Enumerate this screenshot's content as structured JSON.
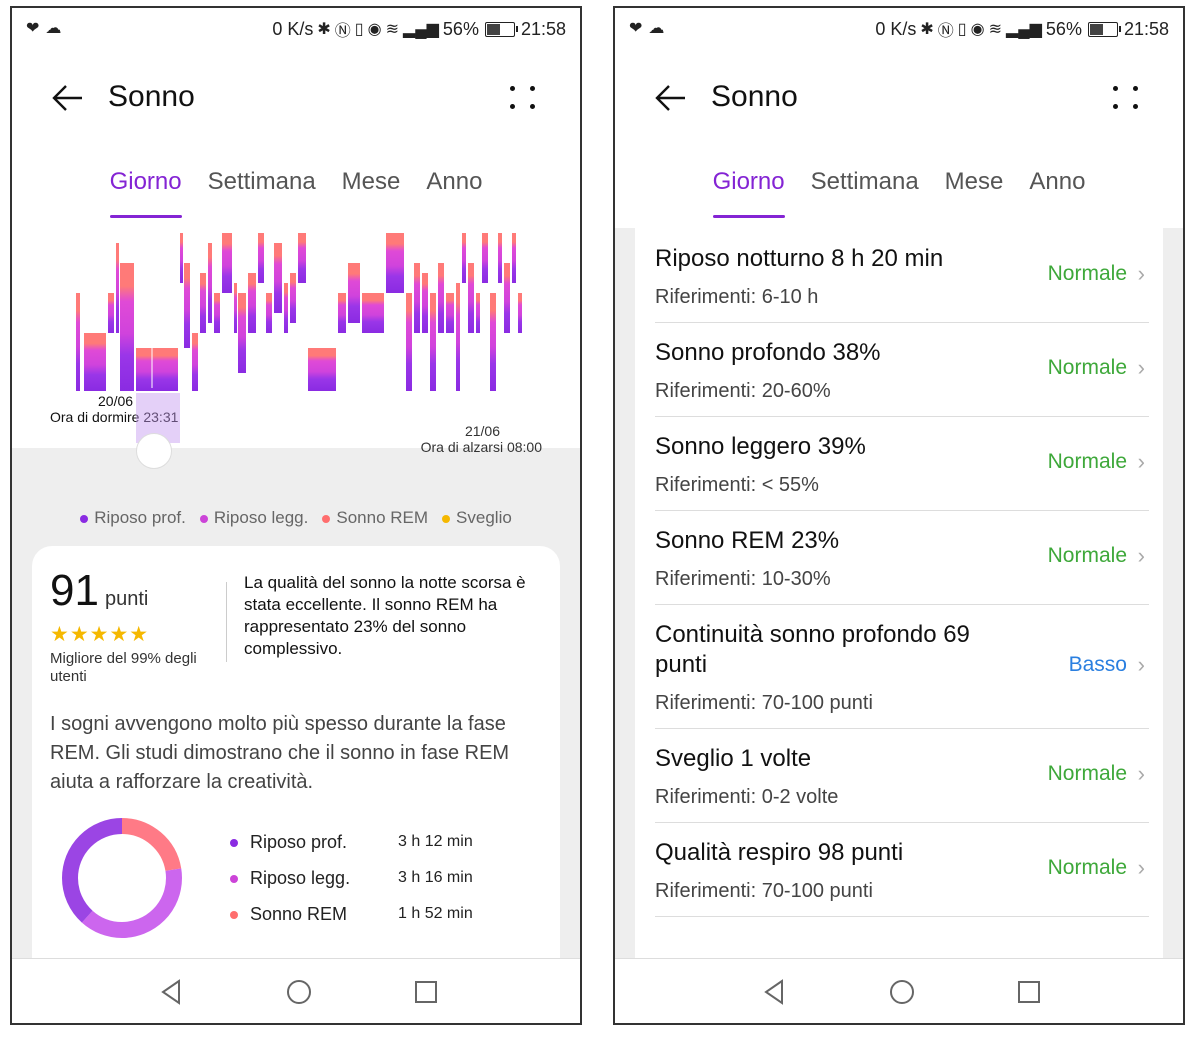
{
  "colors": {
    "accent": "#8424d4",
    "deep": "#8a2be2",
    "light": "#cc44d8",
    "rem": "#ff6e6e",
    "awake": "#f5b800",
    "normal": "#3ea83a",
    "low": "#2a7fe0"
  },
  "status_bar": {
    "speed": "0 K/s",
    "battery": "56%",
    "time": "21:58",
    "battery_fill": 0.56
  },
  "left": {
    "title": "Sonno",
    "tabs": [
      "Giorno",
      "Settimana",
      "Mese",
      "Anno"
    ],
    "active_tab": 0,
    "bed_date": "20/06",
    "bed_label": "Ora di dormire 23:31",
    "wake_date": "21/06",
    "wake_label": "Ora di alzarsi 08:00",
    "legend": [
      {
        "label": "Riposo prof.",
        "color": "#8a2be2"
      },
      {
        "label": "Riposo legg.",
        "color": "#cc44d8"
      },
      {
        "label": "Sonno REM",
        "color": "#ff6e6e"
      },
      {
        "label": "Sveglio",
        "color": "#f5b800"
      }
    ],
    "score": {
      "value": "91",
      "unit": "punti",
      "stars": "★★★★★",
      "rank": "Migliore del 99% degli utenti"
    },
    "quality_text": "La qualità del sonno la notte scorsa è stata eccellente. Il sonno REM ha rappresentato 23% del sonno complessivo.",
    "tip_text": "I sogni avvengono molto più spesso durante la fase REM. Gli studi dimostrano che il sonno in fase REM aiuta a rafforzare la creatività.",
    "stats": [
      {
        "label": "Riposo prof.",
        "value": "3 h 12 min",
        "color": "#8a2be2"
      },
      {
        "label": "Riposo legg.",
        "value": "3 h 16 min",
        "color": "#cc44d8"
      },
      {
        "label": "Sonno REM",
        "value": "1 h 52 min",
        "color": "#ff6e6e"
      }
    ]
  },
  "right": {
    "title": "Sonno",
    "tabs": [
      "Giorno",
      "Settimana",
      "Mese",
      "Anno"
    ],
    "active_tab": 0,
    "rows": [
      {
        "name": "Riposo notturno  8 h 20 min",
        "ref": "Riferimenti: 6-10 h",
        "status": "Normale",
        "level": "normal"
      },
      {
        "name": "Sonno profondo  38%",
        "ref": "Riferimenti: 20-60%",
        "status": "Normale",
        "level": "normal"
      },
      {
        "name": "Sonno leggero  39%",
        "ref": "Riferimenti: < 55%",
        "status": "Normale",
        "level": "normal"
      },
      {
        "name": "Sonno REM  23%",
        "ref": "Riferimenti: 10-30%",
        "status": "Normale",
        "level": "normal"
      },
      {
        "name": "Continuità sonno profondo  69 punti",
        "ref": "Riferimenti: 70-100 punti",
        "status": "Basso",
        "level": "low"
      },
      {
        "name": "Sveglio  1 volte",
        "ref": "Riferimenti: 0-2 volte",
        "status": "Normale",
        "level": "normal"
      },
      {
        "name": "Qualità respiro  98 punti",
        "ref": "Riferimenti: 70-100 punti",
        "status": "Normale",
        "level": "normal"
      }
    ]
  },
  "nav": {
    "back": "triangle-back-icon",
    "home": "circle-home-icon",
    "recents": "square-recents-icon"
  }
}
